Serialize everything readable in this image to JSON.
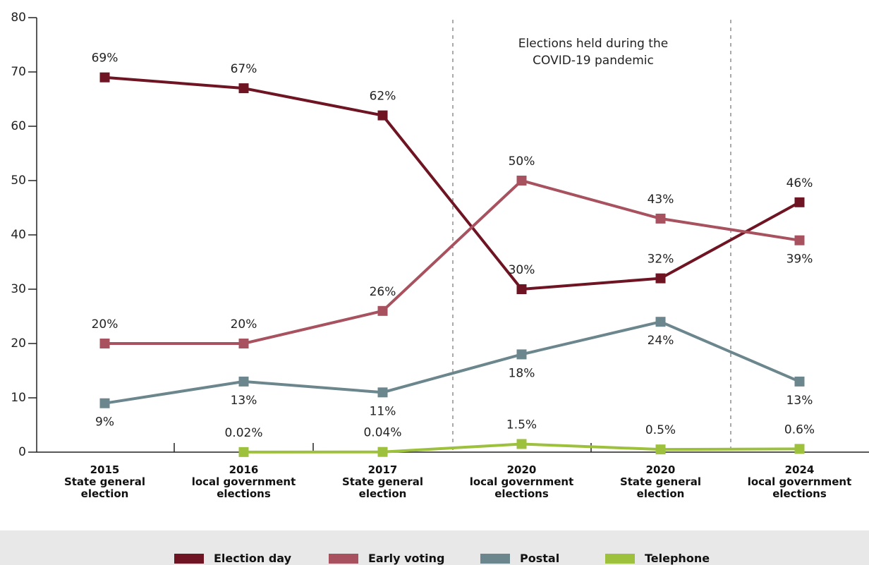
{
  "chart_data": {
    "type": "line",
    "categories": [
      "2015\nState general\nelection",
      "2016\nlocal government\nelections",
      "2017\nState general\nelection",
      "2020\nlocal government\nelections",
      "2020\nState general\nelection",
      "2024\nlocal government\nelections"
    ],
    "series": [
      {
        "name": "Election day",
        "color": "#6e1423",
        "values": [
          69,
          67,
          62,
          30,
          32,
          46
        ],
        "value_labels": [
          "69%",
          "67%",
          "62%",
          "30%",
          "32%",
          "46%"
        ]
      },
      {
        "name": "Early voting",
        "color": "#a8515f",
        "values": [
          20,
          20,
          26,
          50,
          43,
          39
        ],
        "value_labels": [
          "20%",
          "20%",
          "26%",
          "50%",
          "43%",
          "39%"
        ]
      },
      {
        "name": "Postal",
        "color": "#6b868c",
        "values": [
          9,
          13,
          11,
          18,
          24,
          13
        ],
        "value_labels": [
          "9%",
          "13%",
          "11%",
          "18%",
          "24%",
          "13%"
        ]
      },
      {
        "name": "Telephone",
        "color": "#9dc13c",
        "values": [
          null,
          0.02,
          0.04,
          1.5,
          0.5,
          0.6
        ],
        "value_labels": [
          null,
          "0.02%",
          "0.04%",
          "1.5%",
          "0.5%",
          "0.6%"
        ]
      }
    ],
    "annotation": "Elections held during the\nCOVID-19 pandemic",
    "ylim": [
      0,
      80
    ],
    "yticks": [
      0,
      10,
      20,
      30,
      40,
      50,
      60,
      70,
      80
    ],
    "grid": false
  }
}
